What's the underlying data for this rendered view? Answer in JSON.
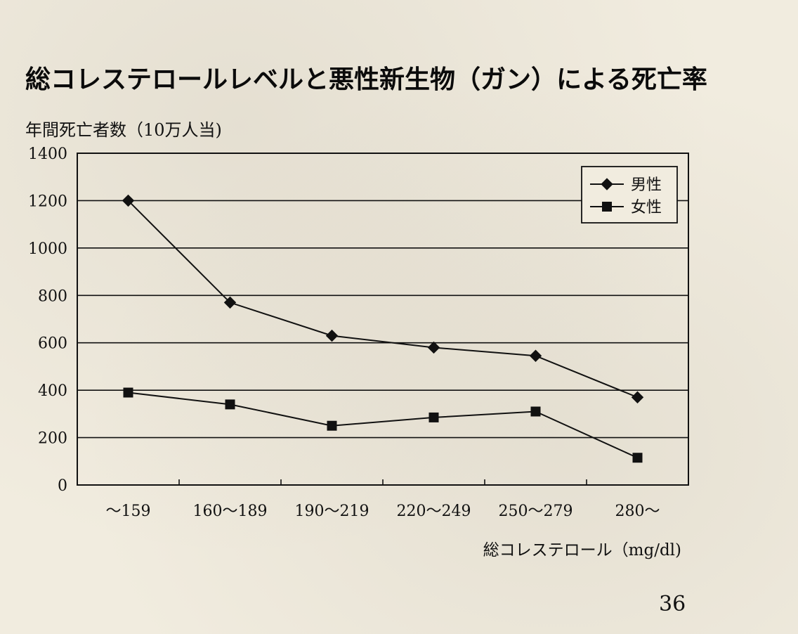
{
  "chart_data": {
    "type": "line",
    "title": "総コレステロールレベルと悪性新生物（ガン）による死亡率",
    "ylabel": "年間死亡者数（10万人当)",
    "xlabel": "総コレステロール（mg/dl)",
    "categories": [
      "～159",
      "160～189",
      "190～219",
      "220～249",
      "250～279",
      "280～"
    ],
    "ylim": [
      0,
      1400
    ],
    "yticks": [
      0,
      200,
      400,
      600,
      800,
      1000,
      1200,
      1400
    ],
    "grid": true,
    "legend_position": "top-right",
    "series": [
      {
        "name": "男性",
        "marker": "diamond",
        "values": [
          1200,
          770,
          630,
          580,
          545,
          370
        ]
      },
      {
        "name": "女性",
        "marker": "square",
        "values": [
          390,
          340,
          250,
          285,
          310,
          115
        ]
      }
    ]
  },
  "page": {
    "number": "36"
  },
  "colors": {
    "background": "#f1ecdf",
    "ink": "#111111"
  }
}
